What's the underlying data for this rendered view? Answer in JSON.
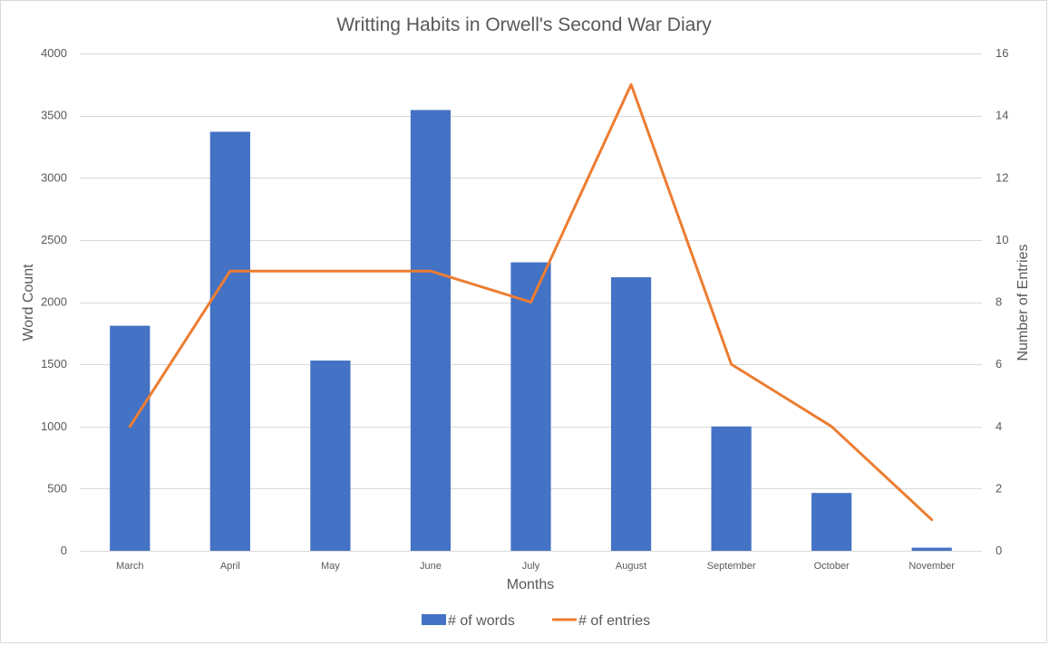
{
  "chart_data": {
    "type": "bar",
    "title": "Writting Habits in Orwell's Second War Diary",
    "xlabel": "Months",
    "ylabel": "Word Count",
    "y2label": "Number of Entries",
    "categories": [
      "March",
      "April",
      "May",
      "June",
      "July",
      "August",
      "September",
      "October",
      "November"
    ],
    "ylim": [
      0,
      4000
    ],
    "y2lim": [
      0,
      16
    ],
    "y_ticks": [
      0,
      500,
      1000,
      1500,
      2000,
      2500,
      3000,
      3500,
      4000
    ],
    "y2_ticks": [
      0,
      2,
      4,
      6,
      8,
      10,
      12,
      14,
      16
    ],
    "grid": true,
    "legend_position": "bottom",
    "series": [
      {
        "name": "# of words",
        "type": "bar",
        "axis": "left",
        "color": "#4472C4",
        "values": [
          1810,
          3370,
          1530,
          3545,
          2320,
          2200,
          1000,
          465,
          25
        ]
      },
      {
        "name": "# of entries",
        "type": "line",
        "axis": "right",
        "color": "#ED7D31",
        "values": [
          4,
          9,
          9,
          9,
          8,
          15,
          6,
          4,
          1
        ]
      }
    ]
  }
}
